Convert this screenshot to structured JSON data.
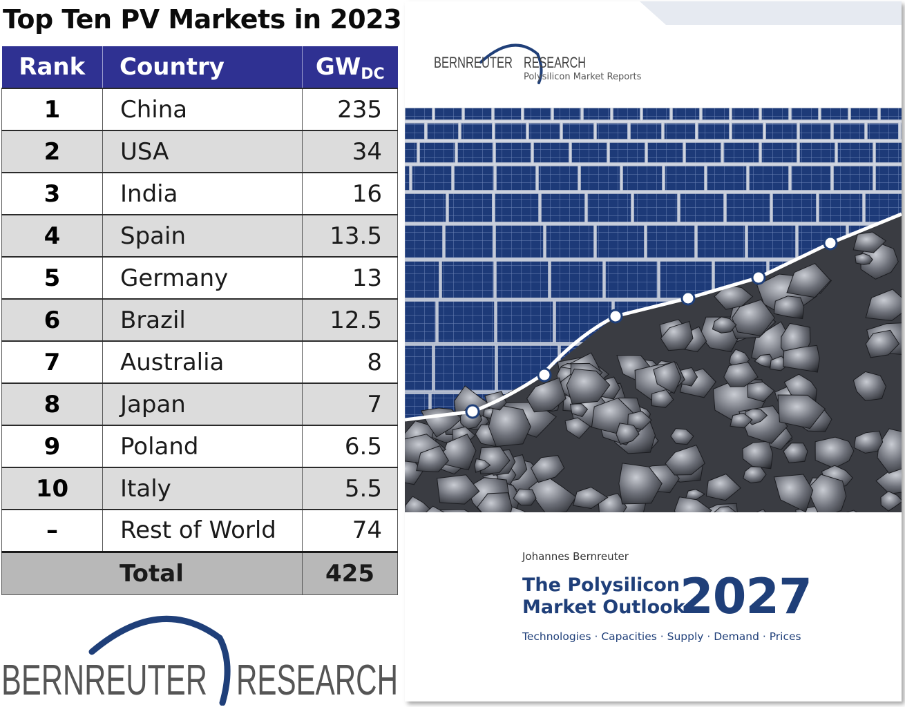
{
  "title": "Top Ten PV Markets in 2023",
  "table": {
    "headers": {
      "rank": "Rank",
      "country": "Country",
      "gw": "GW",
      "gw_sub": "DC"
    },
    "rows": [
      {
        "rank": "1",
        "country": "China",
        "value": "235"
      },
      {
        "rank": "2",
        "country": "USA",
        "value": "34"
      },
      {
        "rank": "3",
        "country": "India",
        "value": "16"
      },
      {
        "rank": "4",
        "country": "Spain",
        "value": "13.5"
      },
      {
        "rank": "5",
        "country": "Germany",
        "value": "13"
      },
      {
        "rank": "6",
        "country": "Brazil",
        "value": "12.5"
      },
      {
        "rank": "7",
        "country": "Australia",
        "value": "8"
      },
      {
        "rank": "8",
        "country": "Japan",
        "value": "7"
      },
      {
        "rank": "9",
        "country": "Poland",
        "value": "6.5"
      },
      {
        "rank": "10",
        "country": "Italy",
        "value": "5.5"
      },
      {
        "rank": "–",
        "country": "Rest of World",
        "value": "74"
      }
    ],
    "total": {
      "label": "Total",
      "value": "425"
    }
  },
  "logo": {
    "left": "BERNREUTER",
    "right": "RESEARCH"
  },
  "cover": {
    "logo_left": "BERNREUTER",
    "logo_right": "RESEARCH",
    "logo_sub": "Polysilicon Market Reports",
    "author": "Johannes Bernreuter",
    "title_line1": "The Polysilicon",
    "title_line2": "Market Outlook",
    "year": "2027",
    "topics": "Technologies · Capacities · Supply · Demand · Prices"
  },
  "colors": {
    "header_blue": "#2f3192",
    "logo_blue": "#1f3f79",
    "row_gray": "#dcdcdc",
    "total_gray": "#b8b8b8"
  }
}
